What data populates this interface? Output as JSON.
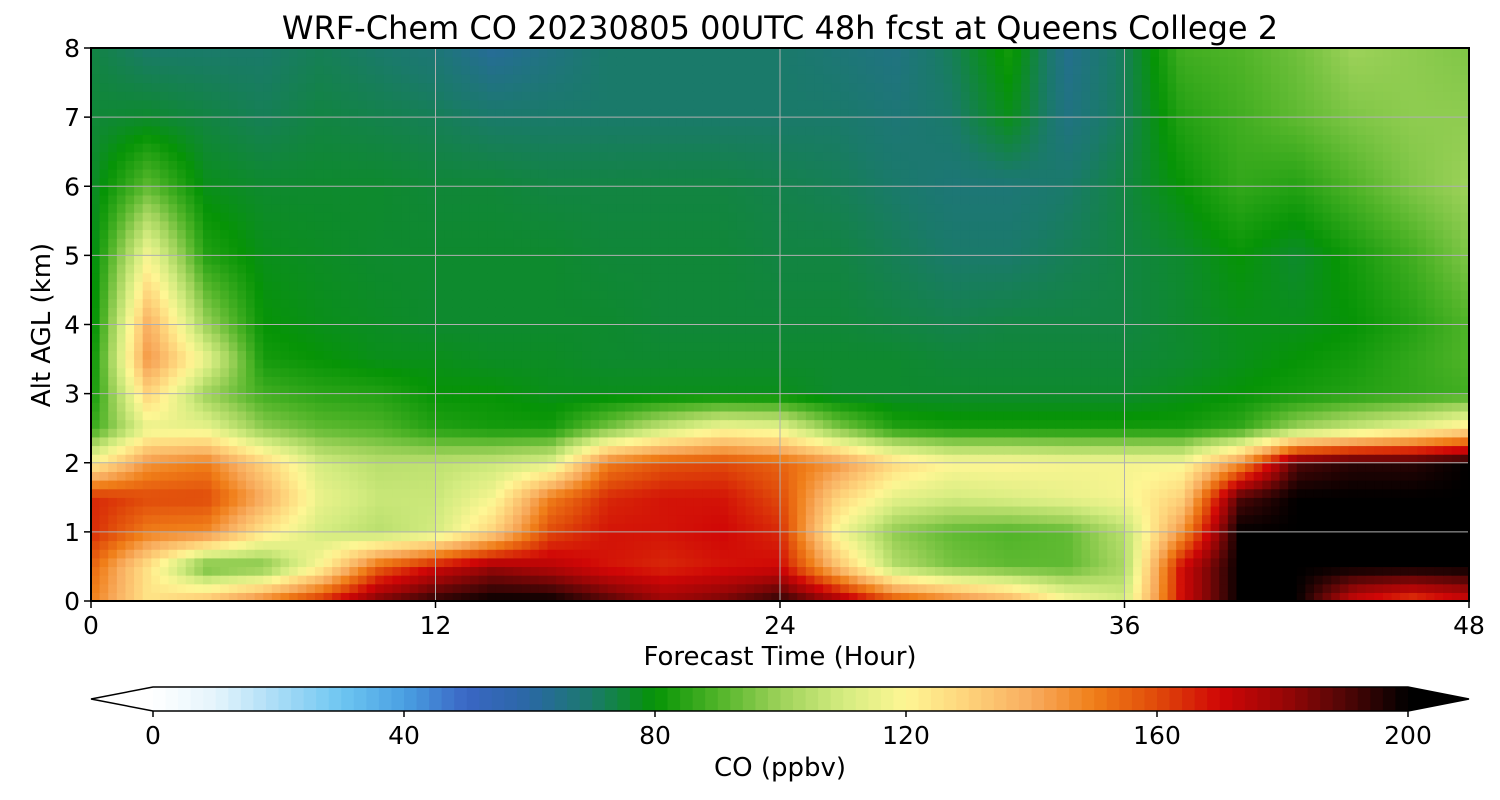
{
  "chart_data": {
    "type": "heatmap",
    "title": "WRF-Chem CO  20230805 00UTC 48h fcst at Queens College 2",
    "xlabel": "Forecast Time (Hour)",
    "ylabel": "Alt AGL (km)",
    "xlim": [
      0,
      48
    ],
    "ylim": [
      0,
      8
    ],
    "xticks": [
      0,
      12,
      24,
      36,
      48
    ],
    "yticks": [
      0,
      1,
      2,
      3,
      4,
      5,
      6,
      7,
      8
    ],
    "grid": true,
    "colorbar": {
      "label": "CO  (ppbv)",
      "orientation": "horizontal",
      "placement": "bottom",
      "range": [
        0,
        200
      ],
      "ticks": [
        0,
        40,
        80,
        120,
        160,
        200
      ],
      "extend": "both",
      "colors": [
        "#ffffff",
        "#e4f4fc",
        "#a8dcf6",
        "#6ec6f2",
        "#4aa0e2",
        "#3a66c4",
        "#2a68a4",
        "#1a7a6a",
        "#069406",
        "#50b428",
        "#9ed25a",
        "#d4ec80",
        "#fef694",
        "#fed27a",
        "#f8ac5e",
        "#f07e18",
        "#e04a0a",
        "#d00606",
        "#9a0606",
        "#500606",
        "#000000"
      ]
    },
    "x": [
      0,
      2,
      4,
      6,
      8,
      10,
      12,
      14,
      16,
      18,
      20,
      22,
      24,
      26,
      28,
      30,
      32,
      34,
      36,
      38,
      40,
      42,
      44,
      46,
      48
    ],
    "y": [
      0,
      0.5,
      1,
      1.5,
      2,
      2.5,
      3,
      3.5,
      4,
      5,
      6,
      7,
      8
    ],
    "values": [
      [
        150,
        125,
        135,
        150,
        165,
        185,
        195,
        200,
        200,
        190,
        180,
        185,
        195,
        180,
        160,
        150,
        140,
        120,
        110,
        170,
        200,
        200,
        170,
        160,
        170
      ],
      [
        155,
        125,
        92,
        95,
        120,
        155,
        170,
        180,
        175,
        168,
        165,
        168,
        170,
        135,
        104,
        95,
        92,
        92,
        102,
        170,
        200,
        200,
        200,
        200,
        200
      ],
      [
        165,
        150,
        148,
        125,
        110,
        105,
        110,
        130,
        160,
        168,
        168,
        170,
        165,
        118,
        98,
        92,
        90,
        92,
        105,
        145,
        200,
        200,
        200,
        200,
        200
      ],
      [
        165,
        160,
        160,
        140,
        115,
        108,
        108,
        118,
        150,
        165,
        168,
        168,
        160,
        130,
        114,
        110,
        112,
        115,
        118,
        130,
        190,
        200,
        200,
        200,
        200
      ],
      [
        120,
        145,
        150,
        130,
        110,
        105,
        106,
        108,
        112,
        150,
        158,
        160,
        155,
        145,
        128,
        120,
        120,
        118,
        118,
        118,
        145,
        190,
        195,
        195,
        200
      ],
      [
        86,
        115,
        115,
        98,
        92,
        90,
        84,
        82,
        82,
        95,
        108,
        118,
        115,
        96,
        84,
        82,
        82,
        82,
        82,
        82,
        86,
        100,
        108,
        115,
        125
      ],
      [
        80,
        130,
        100,
        88,
        85,
        84,
        80,
        80,
        78,
        78,
        78,
        78,
        78,
        76,
        76,
        76,
        76,
        76,
        76,
        78,
        80,
        82,
        84,
        86,
        88
      ],
      [
        78,
        145,
        115,
        82,
        80,
        78,
        78,
        77,
        77,
        76,
        76,
        76,
        76,
        76,
        76,
        75,
        75,
        75,
        75,
        76,
        78,
        80,
        82,
        86,
        90
      ],
      [
        76,
        140,
        100,
        80,
        78,
        77,
        76,
        76,
        76,
        76,
        75,
        75,
        75,
        75,
        74,
        73,
        74,
        74,
        74,
        76,
        78,
        78,
        80,
        84,
        90
      ],
      [
        76,
        118,
        84,
        78,
        77,
        76,
        76,
        76,
        76,
        75,
        75,
        75,
        74,
        74,
        72,
        70,
        70,
        72,
        74,
        76,
        80,
        76,
        82,
        88,
        96
      ],
      [
        76,
        92,
        78,
        76,
        76,
        76,
        75,
        75,
        74,
        74,
        74,
        74,
        73,
        72,
        70,
        68,
        68,
        70,
        74,
        80,
        86,
        84,
        90,
        96,
        100
      ],
      [
        75,
        76,
        74,
        72,
        74,
        73,
        72,
        70,
        70,
        70,
        70,
        70,
        70,
        70,
        68,
        70,
        78,
        66,
        72,
        84,
        88,
        92,
        96,
        98,
        98
      ],
      [
        74,
        70,
        70,
        70,
        72,
        70,
        68,
        62,
        66,
        70,
        70,
        70,
        70,
        68,
        66,
        72,
        82,
        64,
        72,
        88,
        90,
        94,
        100,
        98,
        96
      ]
    ]
  }
}
